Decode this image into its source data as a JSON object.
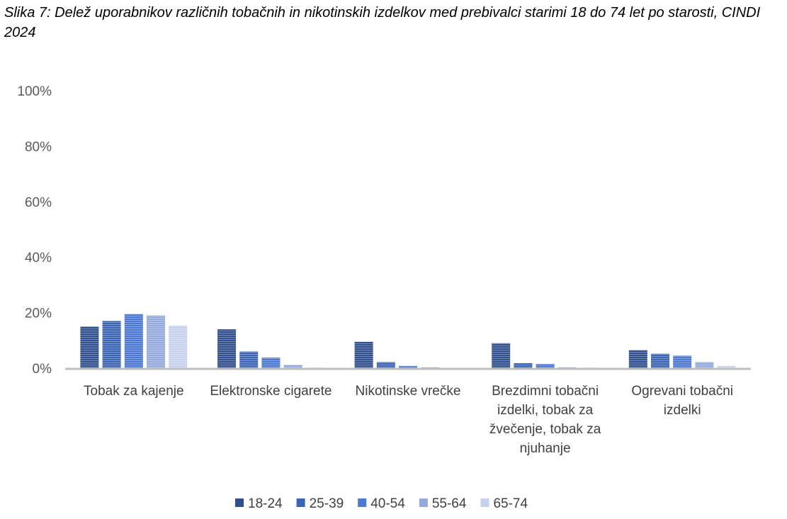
{
  "chart_data": {
    "type": "bar",
    "title": "Slika 7: Delež uporabnikov različnih tobačnih in nikotinskih izdelkov med prebivalci starimi 18 do 74 let po starosti, CINDI 2024",
    "categories": [
      [
        "Tobak za kajenje"
      ],
      [
        "Elektronske cigarete"
      ],
      [
        "Nikotinske vrečke"
      ],
      [
        "Brezdimni tobačni",
        "izdelki, tobak za",
        "žvečenje, tobak za",
        "njuhanje"
      ],
      [
        "Ogrevani tobačni",
        "izdelki"
      ]
    ],
    "series": [
      {
        "name": "18-24",
        "color": "#2f4f8f",
        "values": [
          15.0,
          14.0,
          9.5,
          9.0,
          6.5
        ]
      },
      {
        "name": "25-39",
        "color": "#3b64b4",
        "values": [
          17.0,
          6.0,
          2.2,
          1.8,
          5.2
        ]
      },
      {
        "name": "40-54",
        "color": "#4a78d2",
        "values": [
          19.5,
          3.8,
          0.8,
          1.5,
          4.5
        ]
      },
      {
        "name": "55-64",
        "color": "#93a9dc",
        "values": [
          19.0,
          1.2,
          0.3,
          0.3,
          2.2
        ]
      },
      {
        "name": "65-74",
        "color": "#c6d1ee",
        "values": [
          15.3,
          0.2,
          0.1,
          0.2,
          0.8
        ]
      }
    ],
    "ylim": [
      0,
      100
    ],
    "yticks": [
      "0%",
      "20%",
      "40%",
      "60%",
      "80%",
      "100%"
    ],
    "xlabel": "",
    "ylabel": "",
    "grid": false,
    "legend_position": "bottom"
  }
}
